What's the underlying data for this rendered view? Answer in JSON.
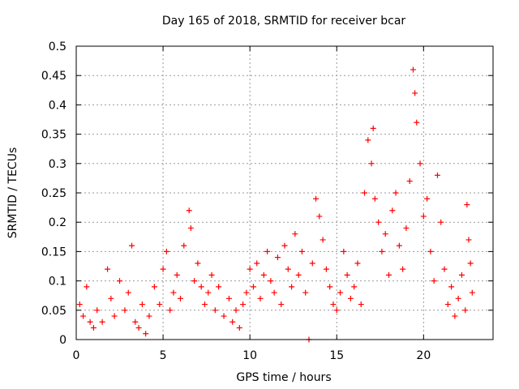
{
  "chart_data": {
    "type": "scatter",
    "title": "Day 165 of 2018, SRMTID for receiver bcar",
    "xlabel": "GPS time / hours",
    "ylabel": "SRMTID / TECUs",
    "xlim": [
      0,
      24
    ],
    "ylim": [
      0,
      0.5
    ],
    "xticks": [
      0,
      5,
      10,
      15,
      20
    ],
    "xtick_labels": [
      "0",
      "5",
      "10",
      "15",
      "20"
    ],
    "yticks": [
      0,
      0.05,
      0.1,
      0.15,
      0.2,
      0.25,
      0.3,
      0.35,
      0.4,
      0.45,
      0.5
    ],
    "ytick_labels": [
      "0",
      "0.05",
      "0.1",
      "0.15",
      "0.2",
      "0.25",
      "0.3",
      "0.35",
      "0.4",
      "0.45",
      "0.5"
    ],
    "grid": true,
    "marker": "+",
    "series": [
      {
        "name": "SRMTID",
        "color": "#ff0000",
        "points": [
          [
            0.2,
            0.06
          ],
          [
            0.4,
            0.04
          ],
          [
            0.6,
            0.09
          ],
          [
            0.8,
            0.03
          ],
          [
            1.0,
            0.02
          ],
          [
            1.2,
            0.05
          ],
          [
            1.5,
            0.03
          ],
          [
            1.8,
            0.12
          ],
          [
            2.0,
            0.07
          ],
          [
            2.2,
            0.04
          ],
          [
            2.5,
            0.1
          ],
          [
            2.8,
            0.05
          ],
          [
            3.0,
            0.08
          ],
          [
            3.2,
            0.16
          ],
          [
            3.4,
            0.03
          ],
          [
            3.6,
            0.02
          ],
          [
            3.8,
            0.06
          ],
          [
            4.0,
            0.01
          ],
          [
            4.2,
            0.04
          ],
          [
            4.5,
            0.09
          ],
          [
            4.8,
            0.06
          ],
          [
            5.0,
            0.12
          ],
          [
            5.2,
            0.15
          ],
          [
            5.4,
            0.05
          ],
          [
            5.6,
            0.08
          ],
          [
            5.8,
            0.11
          ],
          [
            6.0,
            0.07
          ],
          [
            6.2,
            0.16
          ],
          [
            6.5,
            0.22
          ],
          [
            6.6,
            0.19
          ],
          [
            6.8,
            0.1
          ],
          [
            7.0,
            0.13
          ],
          [
            7.2,
            0.09
          ],
          [
            7.4,
            0.06
          ],
          [
            7.6,
            0.08
          ],
          [
            7.8,
            0.11
          ],
          [
            8.0,
            0.05
          ],
          [
            8.2,
            0.09
          ],
          [
            8.5,
            0.04
          ],
          [
            8.8,
            0.07
          ],
          [
            9.0,
            0.03
          ],
          [
            9.2,
            0.05
          ],
          [
            9.4,
            0.02
          ],
          [
            9.6,
            0.06
          ],
          [
            9.8,
            0.08
          ],
          [
            10.0,
            0.12
          ],
          [
            10.2,
            0.09
          ],
          [
            10.4,
            0.13
          ],
          [
            10.6,
            0.07
          ],
          [
            10.8,
            0.11
          ],
          [
            11.0,
            0.15
          ],
          [
            11.2,
            0.1
          ],
          [
            11.4,
            0.08
          ],
          [
            11.6,
            0.14
          ],
          [
            11.8,
            0.06
          ],
          [
            12.0,
            0.16
          ],
          [
            12.2,
            0.12
          ],
          [
            12.4,
            0.09
          ],
          [
            12.6,
            0.18
          ],
          [
            12.8,
            0.11
          ],
          [
            13.0,
            0.15
          ],
          [
            13.2,
            0.08
          ],
          [
            13.4,
            0.0
          ],
          [
            13.6,
            0.13
          ],
          [
            13.8,
            0.24
          ],
          [
            14.0,
            0.21
          ],
          [
            14.2,
            0.17
          ],
          [
            14.4,
            0.12
          ],
          [
            14.6,
            0.09
          ],
          [
            14.8,
            0.06
          ],
          [
            15.0,
            0.05
          ],
          [
            15.2,
            0.08
          ],
          [
            15.4,
            0.15
          ],
          [
            15.6,
            0.11
          ],
          [
            15.8,
            0.07
          ],
          [
            16.0,
            0.09
          ],
          [
            16.2,
            0.13
          ],
          [
            16.4,
            0.06
          ],
          [
            16.6,
            0.25
          ],
          [
            16.8,
            0.34
          ],
          [
            17.0,
            0.3
          ],
          [
            17.1,
            0.36
          ],
          [
            17.2,
            0.24
          ],
          [
            17.4,
            0.2
          ],
          [
            17.6,
            0.15
          ],
          [
            17.8,
            0.18
          ],
          [
            18.0,
            0.11
          ],
          [
            18.2,
            0.22
          ],
          [
            18.4,
            0.25
          ],
          [
            18.6,
            0.16
          ],
          [
            18.8,
            0.12
          ],
          [
            19.0,
            0.19
          ],
          [
            19.2,
            0.27
          ],
          [
            19.4,
            0.46
          ],
          [
            19.5,
            0.42
          ],
          [
            19.6,
            0.37
          ],
          [
            19.8,
            0.3
          ],
          [
            20.0,
            0.21
          ],
          [
            20.2,
            0.24
          ],
          [
            20.4,
            0.15
          ],
          [
            20.6,
            0.1
          ],
          [
            20.8,
            0.28
          ],
          [
            21.0,
            0.2
          ],
          [
            21.2,
            0.12
          ],
          [
            21.4,
            0.06
          ],
          [
            21.6,
            0.09
          ],
          [
            21.8,
            0.04
          ],
          [
            22.0,
            0.07
          ],
          [
            22.2,
            0.11
          ],
          [
            22.4,
            0.05
          ],
          [
            22.5,
            0.23
          ],
          [
            22.6,
            0.17
          ],
          [
            22.7,
            0.13
          ],
          [
            22.8,
            0.08
          ]
        ]
      }
    ]
  }
}
